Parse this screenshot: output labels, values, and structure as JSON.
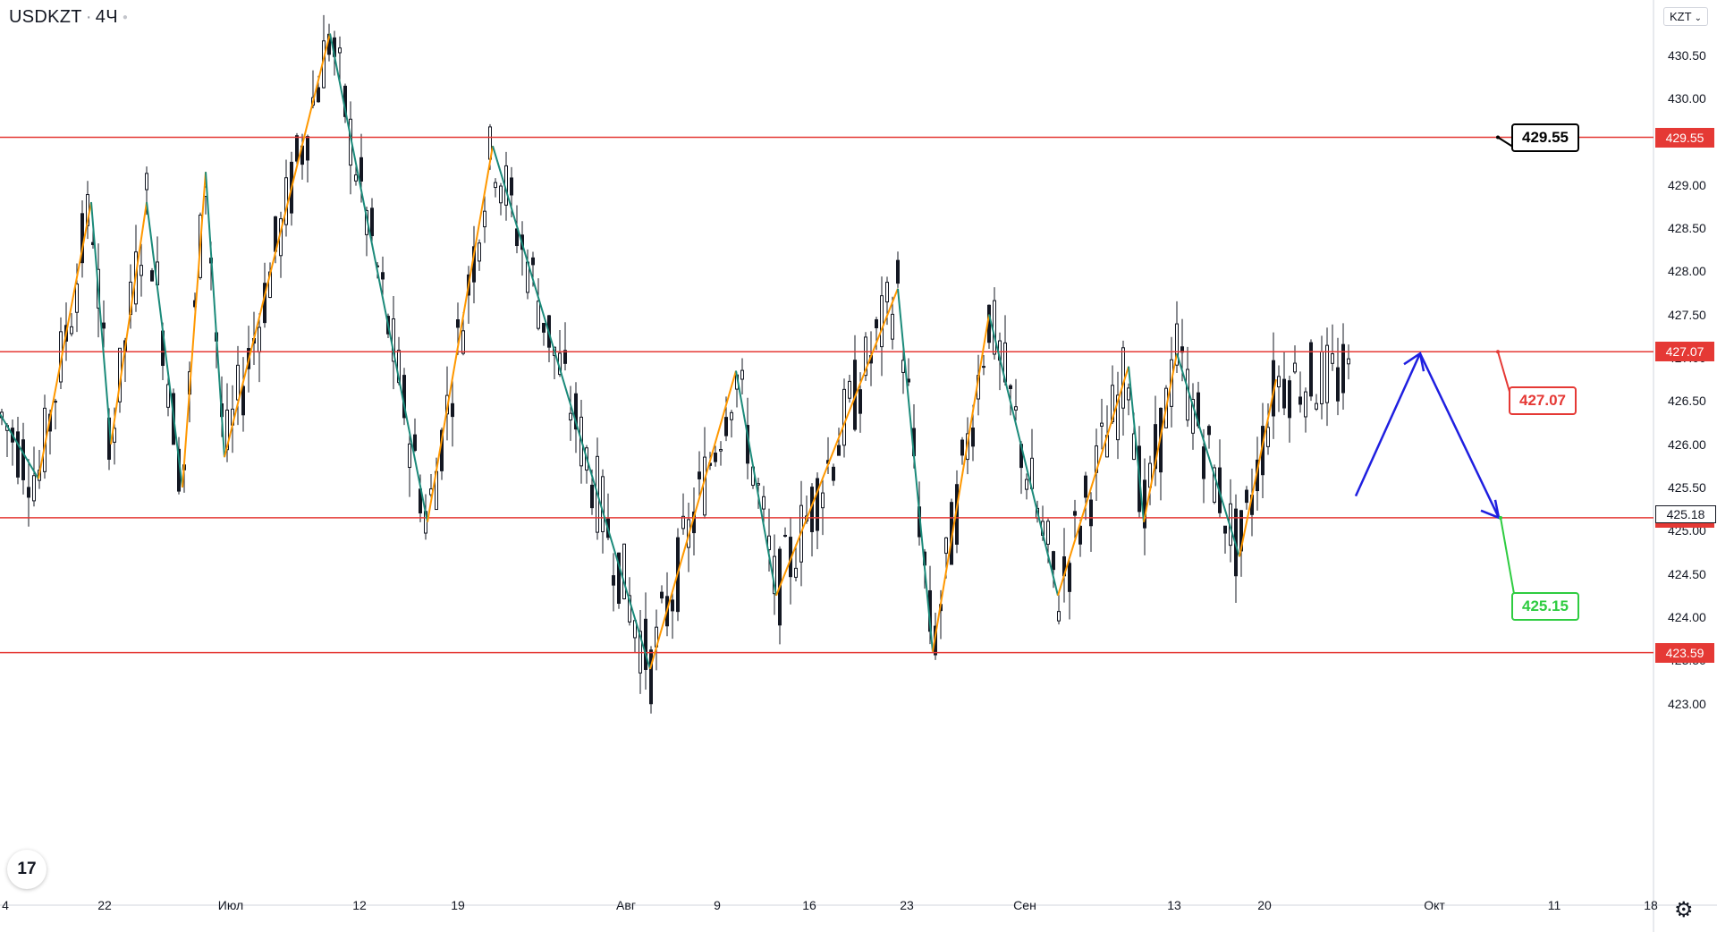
{
  "header": {
    "symbol": "USDKZT",
    "interval": "4Ч",
    "currency": "KZT"
  },
  "chart_data": {
    "type": "line",
    "price_axis": {
      "ticks": [
        "430.50",
        "430.00",
        "429.50",
        "429.00",
        "428.50",
        "428.00",
        "427.50",
        "427.00",
        "426.50",
        "426.00",
        "425.50",
        "425.00",
        "424.50",
        "424.00",
        "423.50",
        "423.00"
      ],
      "range": [
        422.7,
        431.0
      ]
    },
    "time_axis": {
      "ticks": [
        "4",
        "22",
        "Июл",
        "12",
        "19",
        "Авг",
        "9",
        "16",
        "23",
        "Сен",
        "13",
        "20",
        "Окт",
        "11",
        "18"
      ]
    },
    "levels": [
      {
        "value": 429.55,
        "label": "429.55",
        "color": "#e53935",
        "annotation_color": "#000000"
      },
      {
        "value": 427.07,
        "label": "427.07",
        "color": "#e53935",
        "annotation_color": "#e53935"
      },
      {
        "value": 425.15,
        "label": "425.15",
        "color": "#e53935",
        "annotation_color": "#2ecc40"
      },
      {
        "value": 423.59,
        "label": "423.59",
        "color": "#e53935"
      }
    ],
    "last_price": {
      "value": 425.18,
      "label": "425.18"
    },
    "zigzag": [
      [
        426.35,
        "down"
      ],
      [
        425.6,
        "up"
      ],
      [
        428.8,
        "down"
      ],
      [
        426.0,
        "up"
      ],
      [
        428.8,
        "down"
      ],
      [
        425.5,
        "up"
      ],
      [
        429.15,
        "down"
      ],
      [
        425.85,
        "up"
      ],
      [
        430.75,
        "down"
      ],
      [
        425.1,
        "up"
      ],
      [
        429.45,
        "down"
      ],
      [
        423.4,
        "up"
      ],
      [
        426.85,
        "down"
      ],
      [
        424.25,
        "up"
      ],
      [
        427.8,
        "down"
      ],
      [
        423.6,
        "up"
      ],
      [
        427.5,
        "down"
      ],
      [
        424.25,
        "up"
      ],
      [
        426.9,
        "down"
      ],
      [
        425.1,
        "up"
      ],
      [
        427.05,
        "down"
      ],
      [
        424.7,
        "up"
      ],
      [
        426.75,
        "down"
      ]
    ],
    "forecast": [
      425.4,
      427.05,
      425.15
    ],
    "colors": {
      "up_leg": "#ff9800",
      "down_leg": "#1b8a7a",
      "forecast": "#1f1fe0",
      "candles": "#131722",
      "levels": "#e53935"
    }
  }
}
